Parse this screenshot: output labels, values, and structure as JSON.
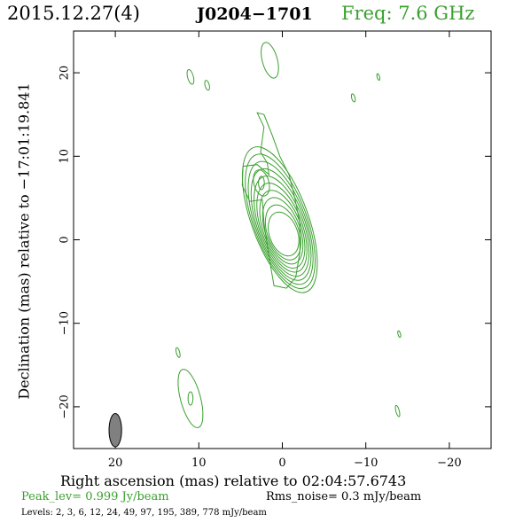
{
  "header": {
    "date": "2015.12.27(4)",
    "source": "J0204−1701",
    "freq": "Freq: 7.6 GHz"
  },
  "footer": {
    "peak": "Peak_lev=  0.999 Jy/beam",
    "rms": "Rms_noise=  0.3 mJy/beam",
    "levels": "Levels:   2,   3,   6,  12,  24,  49,  97, 195, 389, 778 mJy/beam"
  },
  "colors": {
    "contour": "#3aa02e",
    "beam": "#808080"
  },
  "chart_data": {
    "type": "contour",
    "xlabel": "Right ascension (mas) relative to 02:04:57.6743",
    "ylabel": "Declination (mas) relative to −17:01:19.841",
    "xlim": [
      25,
      -25
    ],
    "ylim": [
      -25,
      25
    ],
    "xticks": [
      20,
      10,
      0,
      -10,
      -20
    ],
    "yticks": [
      20,
      10,
      0,
      -10,
      -20
    ],
    "xtick_labels": [
      "20",
      "10",
      "0",
      "−10",
      "−20"
    ],
    "ytick_labels": [
      "20",
      "10",
      "0",
      "−10",
      "−20"
    ],
    "levels_mjy": [
      2,
      3,
      6,
      12,
      24,
      49,
      97,
      195,
      389,
      778
    ],
    "core": {
      "x": -0.2,
      "y": 0.5,
      "pa_deg": -20
    },
    "jet_components": [
      {
        "x": 2.5,
        "y": 6.8
      },
      {
        "x": 1.5,
        "y": 21.5
      },
      {
        "x": 11.0,
        "y": 19.5
      },
      {
        "x": 9.0,
        "y": 18.5
      },
      {
        "x": -8.5,
        "y": 17.0
      },
      {
        "x": -11.5,
        "y": 19.5
      },
      {
        "x": 12.5,
        "y": -13.5
      },
      {
        "x": 11.0,
        "y": -19.0
      },
      {
        "x": -14.0,
        "y": -11.3
      },
      {
        "x": -13.8,
        "y": -20.5
      }
    ],
    "beam": {
      "x": 20.0,
      "y": -22.8,
      "major_mas": 4.0,
      "minor_mas": 1.5,
      "pa_deg": 0
    }
  }
}
